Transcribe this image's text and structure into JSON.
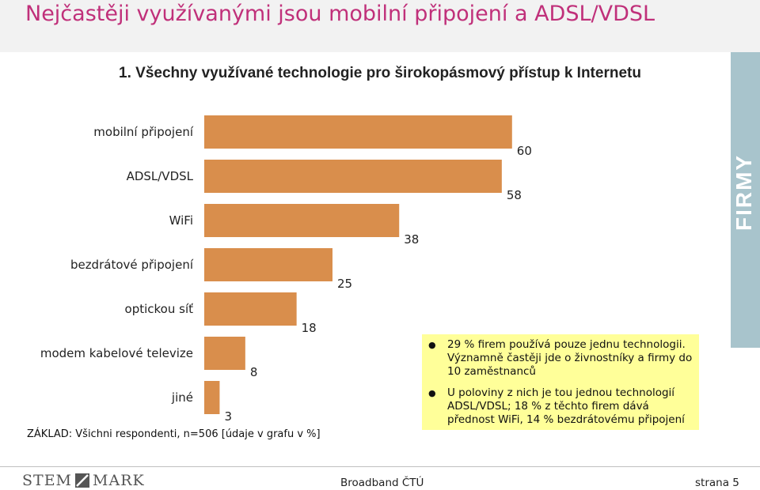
{
  "page": {
    "title": "Nejčastěji využívanými jsou mobilní připojení a ADSL/VDSL",
    "side_label": "FIRMY"
  },
  "chart_data": {
    "type": "bar",
    "orientation": "horizontal",
    "title": "1. Všechny využívané technologie pro širokopásmový přístup k Internetu",
    "categories": [
      "mobilní připojení",
      "ADSL/VDSL",
      "WiFi",
      "bezdrátové připojení",
      "optickou síť",
      "modem kabelové televize",
      "jiné"
    ],
    "values": [
      60,
      58,
      38,
      25,
      18,
      8,
      3
    ],
    "bar_color": "#d98e4c",
    "grid": false,
    "legend": "none"
  },
  "notes": [
    "29 % firem používá pouze jednu technologii. Významně častěji jde o živnostníky a firmy do 10 zaměstnanců",
    "U poloviny z nich je tou jednou technologií ADSL/VDSL; 18 %  z těchto firem dává přednost WiFi, 14 % bezdrátovému připojení"
  ],
  "base_note": "ZÁKLAD: Všichni respondenti, n=506 [údaje v grafu v %]",
  "footer": {
    "logo_left": "STEM",
    "logo_right": "MARK",
    "center": "Broadband ČTÚ",
    "page": "strana 5"
  },
  "colors": {
    "title": "#c0307a",
    "bar": "#d98e4c",
    "side_band": "#a8c4cc",
    "note_bg": "#ffff99"
  }
}
